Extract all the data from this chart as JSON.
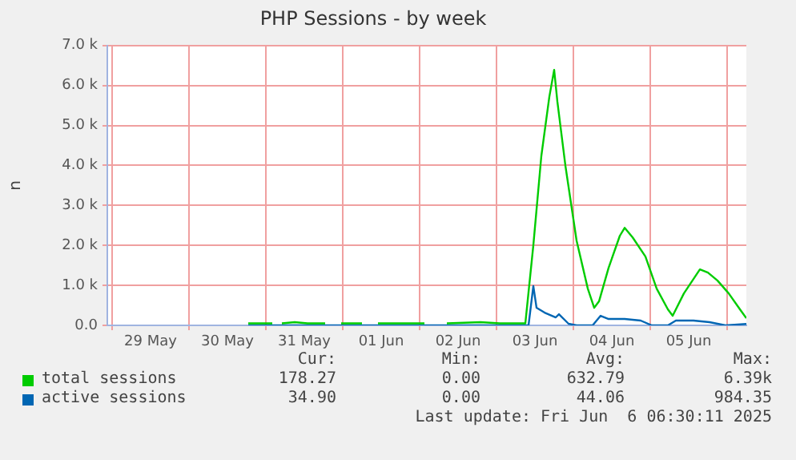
{
  "chart_data": {
    "type": "line",
    "title": "PHP Sessions - by week",
    "ylabel": "n",
    "xlim": [
      "2025-05-28T22:30",
      "2025-06-06T06:00"
    ],
    "xticks": [
      {
        "value": "2025-05-29T00:00",
        "label": null
      },
      {
        "value": "2025-05-29T12:00",
        "label": "29 May"
      },
      {
        "value": "2025-05-30T00:00",
        "label": null
      },
      {
        "value": "2025-05-30T12:00",
        "label": "30 May"
      },
      {
        "value": "2025-05-31T00:00",
        "label": null
      },
      {
        "value": "2025-05-31T12:00",
        "label": "31 May"
      },
      {
        "value": "2025-06-01T00:00",
        "label": null
      },
      {
        "value": "2025-06-01T12:00",
        "label": "01 Jun"
      },
      {
        "value": "2025-06-02T00:00",
        "label": null
      },
      {
        "value": "2025-06-02T12:00",
        "label": "02 Jun"
      },
      {
        "value": "2025-06-03T00:00",
        "label": null
      },
      {
        "value": "2025-06-03T12:00",
        "label": "03 Jun"
      },
      {
        "value": "2025-06-04T00:00",
        "label": null
      },
      {
        "value": "2025-06-04T12:00",
        "label": "04 Jun"
      },
      {
        "value": "2025-06-05T00:00",
        "label": null
      },
      {
        "value": "2025-06-05T12:00",
        "label": "05 Jun"
      },
      {
        "value": "2025-06-06T00:00",
        "label": null
      }
    ],
    "ylim": [
      0,
      7000
    ],
    "yticks": [
      {
        "value": 0,
        "label": "0.0"
      },
      {
        "value": 1000,
        "label": "1.0 k"
      },
      {
        "value": 2000,
        "label": "2.0 k"
      },
      {
        "value": 3000,
        "label": "3.0 k"
      },
      {
        "value": 4000,
        "label": "4.0 k"
      },
      {
        "value": 5000,
        "label": "5.0 k"
      },
      {
        "value": 6000,
        "label": "6.0 k"
      },
      {
        "value": 7000,
        "label": "7.0 k"
      }
    ],
    "grid": true,
    "legend": "bottom",
    "marker": "none",
    "line_style": "solid",
    "series": [
      {
        "name": "total sessions",
        "color": "#00cc00",
        "x": [
          "2025-05-30T18:30",
          "2025-05-31T02:00",
          "2025-05-31T03:30",
          "2025-05-31T05:00",
          "2025-05-31T09:00",
          "2025-05-31T13:00",
          "2025-05-31T18:30",
          "2025-05-31T21:00",
          "2025-05-31T23:30",
          "2025-06-01T06:00",
          "2025-06-01T08:30",
          "2025-06-01T11:00",
          "2025-06-02T01:30",
          "2025-06-02T05:00",
          "2025-06-02T08:30",
          "2025-06-02T19:00",
          "2025-06-03T01:00",
          "2025-06-03T09:00",
          "2025-06-03T11:30",
          "2025-06-03T14:00",
          "2025-06-03T16:30",
          "2025-06-03T18:00",
          "2025-06-03T19:00",
          "2025-06-03T21:30",
          "2025-06-04T01:00",
          "2025-06-04T04:30",
          "2025-06-04T06:30",
          "2025-06-04T08:00",
          "2025-06-04T11:00",
          "2025-06-04T14:30",
          "2025-06-04T16:00",
          "2025-06-04T18:30",
          "2025-06-04T22:30",
          "2025-06-05T02:00",
          "2025-06-05T05:30",
          "2025-06-05T07:00",
          "2025-06-05T10:30",
          "2025-06-05T15:30",
          "2025-06-05T18:00",
          "2025-06-05T21:00",
          "2025-06-06T00:30",
          "2025-06-06T04:00",
          "2025-06-06T06:00"
        ],
        "values": [
          50,
          50,
          null,
          50,
          80,
          50,
          50,
          null,
          50,
          50,
          null,
          50,
          50,
          null,
          50,
          80,
          50,
          50,
          2000,
          4240,
          5720,
          6390,
          5600,
          4000,
          2120,
          920,
          440,
          600,
          1440,
          2240,
          2440,
          2200,
          1720,
          920,
          400,
          240,
          800,
          1400,
          1320,
          1120,
          800,
          400,
          178
        ]
      },
      {
        "name": "active sessions",
        "color": "#0066b3",
        "x": [
          "2025-05-30T18:30",
          "2025-06-03T10:00",
          "2025-06-03T11:30",
          "2025-06-03T12:30",
          "2025-06-03T15:00",
          "2025-06-03T18:30",
          "2025-06-03T19:30",
          "2025-06-03T22:30",
          "2025-06-04T01:00",
          "2025-06-04T06:00",
          "2025-06-04T08:30",
          "2025-06-04T11:00",
          "2025-06-04T16:00",
          "2025-06-04T21:00",
          "2025-06-05T00:30",
          "2025-06-05T05:30",
          "2025-06-05T08:00",
          "2025-06-05T13:30",
          "2025-06-05T18:30",
          "2025-06-05T23:30",
          "2025-06-06T06:00"
        ],
        "values": [
          0,
          0,
          984,
          440,
          320,
          200,
          280,
          40,
          0,
          0,
          240,
          160,
          160,
          120,
          0,
          0,
          120,
          120,
          80,
          0,
          35
        ]
      }
    ],
    "annotations": [
      "Cur:",
      "Min:",
      "Avg:",
      "Max:",
      "178.27",
      "0.00",
      "632.79",
      "6.39k",
      "34.90",
      "0.00",
      "44.06",
      "984.35",
      "Last update: Fri Jun  6 06:30:11 2025"
    ]
  }
}
